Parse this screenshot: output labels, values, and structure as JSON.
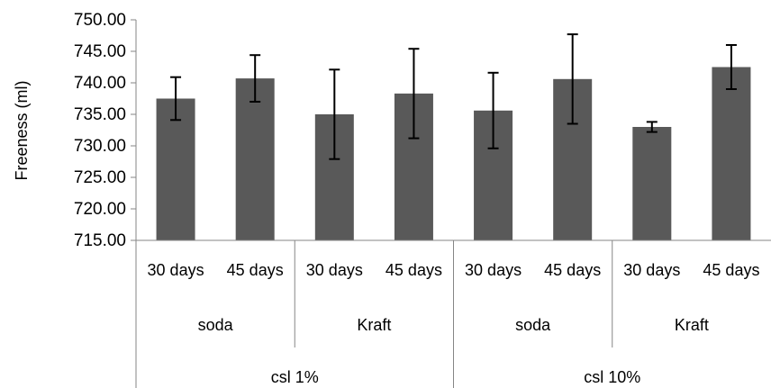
{
  "chart_data": {
    "type": "bar",
    "ylabel": "Freeness (ml)",
    "ylim": [
      715,
      750
    ],
    "yticks": [
      "750.00",
      "745.00",
      "740.00",
      "735.00",
      "730.00",
      "725.00",
      "720.00",
      "715.00"
    ],
    "categories": [
      "30 days",
      "45 days",
      "30 days",
      "45 days",
      "30 days",
      "45 days",
      "30 days",
      "45 days"
    ],
    "process_labels": [
      "soda",
      "Kraft",
      "soda",
      "Kraft"
    ],
    "group_labels": [
      "csl 1%",
      "csl 10%"
    ],
    "values": [
      737.5,
      740.7,
      735.0,
      738.3,
      735.6,
      740.6,
      733.0,
      742.5
    ],
    "errors": [
      3.4,
      3.7,
      7.1,
      7.1,
      6.0,
      7.1,
      0.8,
      3.5
    ],
    "bar_color": "#595959",
    "grid": false,
    "legend": "none"
  }
}
